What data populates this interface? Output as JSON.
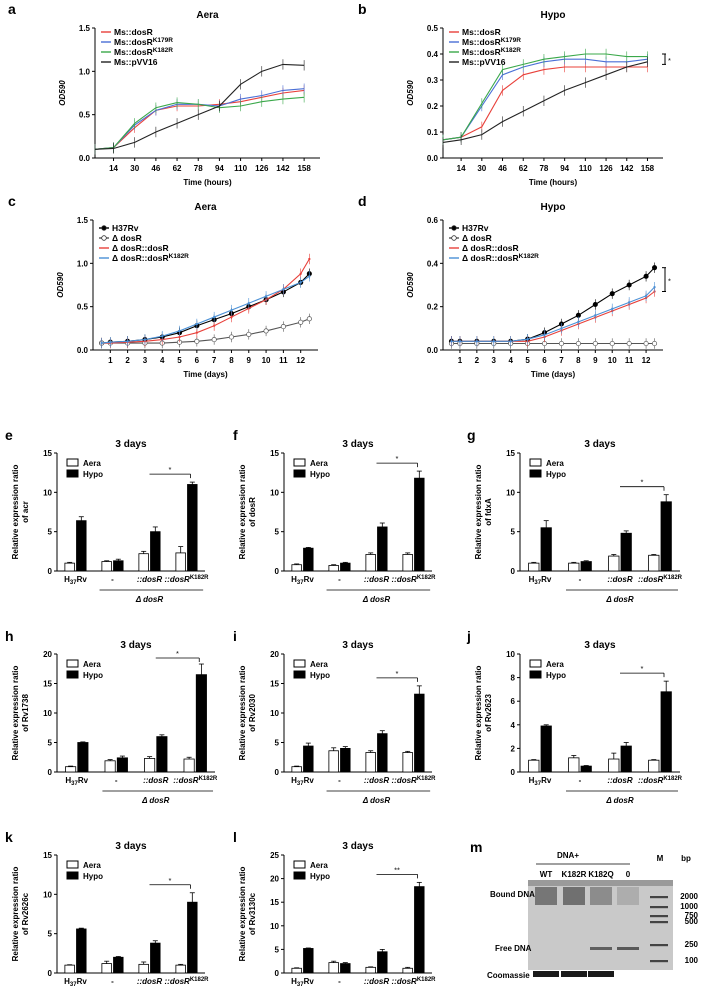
{
  "panels": {
    "a": {
      "letter": "a",
      "title": "Aera",
      "ylabel": "OD590",
      "xlabel": "Time (hours)",
      "yticks": [
        "0.0",
        "0.5",
        "1.0",
        "1.5"
      ],
      "xticks": [
        "14",
        "30",
        "46",
        "62",
        "78",
        "94",
        "110",
        "126",
        "142",
        "158"
      ],
      "legend": [
        {
          "text": "Ms::dosR",
          "color": "#e8403a"
        },
        {
          "text": "Ms::dosR K179R",
          "color": "#4a6fd6"
        },
        {
          "text": "Ms::dosR K182R",
          "color": "#3aa84a"
        },
        {
          "text": "Ms::pVV16",
          "color": "#222222"
        }
      ]
    },
    "b": {
      "letter": "b",
      "title": "Hypo",
      "ylabel": "OD590",
      "xlabel": "Time (hours)",
      "yticks": [
        "0.0",
        "0.1",
        "0.2",
        "0.3",
        "0.4",
        "0.5"
      ],
      "xticks": [
        "14",
        "30",
        "46",
        "62",
        "78",
        "94",
        "110",
        "126",
        "142",
        "158"
      ],
      "star": "*",
      "legend": [
        {
          "text": "Ms::dosR",
          "color": "#e8403a"
        },
        {
          "text": "Ms::dosR K179R",
          "color": "#4a6fd6"
        },
        {
          "text": "Ms::dosR K182R",
          "color": "#3aa84a"
        },
        {
          "text": "Ms::pVV16",
          "color": "#222222"
        }
      ]
    },
    "c": {
      "letter": "c",
      "title": "Aera",
      "ylabel": "OD590",
      "xlabel": "Time (days)",
      "yticks": [
        "0.0",
        "0.5",
        "1.0",
        "1.5"
      ],
      "xticks": [
        "1",
        "2",
        "3",
        "4",
        "5",
        "6",
        "7",
        "8",
        "9",
        "10",
        "11",
        "12"
      ],
      "legend": [
        {
          "text": "H37Rv",
          "color": "#000000"
        },
        {
          "text": "Δ dosR",
          "color": "#555555"
        },
        {
          "text": "Δ dosR::dosR",
          "color": "#e8403a"
        },
        {
          "text": "Δ dosR::dosR K182R",
          "color": "#4a90d6"
        }
      ]
    },
    "d": {
      "letter": "d",
      "title": "Hypo",
      "ylabel": "OD590",
      "xlabel": "Time (days)",
      "yticks": [
        "0.0",
        "0.2",
        "0.4",
        "0.6"
      ],
      "xticks": [
        "1",
        "2",
        "3",
        "4",
        "5",
        "6",
        "7",
        "8",
        "9",
        "10",
        "11",
        "12"
      ],
      "star": "*",
      "legend": [
        {
          "text": "H37Rv",
          "color": "#000000"
        },
        {
          "text": "Δ dosR",
          "color": "#555555"
        },
        {
          "text": "Δ dosR::dosR",
          "color": "#e8403a"
        },
        {
          "text": "Δ dosR::dosR K182R",
          "color": "#4a90d6"
        }
      ]
    }
  },
  "bars_common": {
    "subtitle": "3 days",
    "legend_aera": "Aera",
    "legend_hypo": "Hypo",
    "xcats": [
      "H37Rv",
      "-",
      "::dosR",
      "::dosR K182R"
    ],
    "group_label": "Δ dosR"
  },
  "chart_data": [
    {
      "type": "line",
      "panel": "a",
      "title": "Aera",
      "xlabel": "Time (hours)",
      "ylabel": "OD590",
      "xlim": [
        0,
        170
      ],
      "ylim": [
        0,
        1.5
      ],
      "series": [
        {
          "name": "Ms::dosR",
          "x": [
            0,
            14,
            30,
            46,
            62,
            78,
            94,
            110,
            126,
            142,
            158
          ],
          "values": [
            0.1,
            0.12,
            0.35,
            0.55,
            0.6,
            0.6,
            0.62,
            0.65,
            0.7,
            0.75,
            0.78
          ]
        },
        {
          "name": "Ms::dosR K179R",
          "x": [
            0,
            14,
            30,
            46,
            62,
            78,
            94,
            110,
            126,
            142,
            158
          ],
          "values": [
            0.1,
            0.12,
            0.38,
            0.55,
            0.62,
            0.62,
            0.6,
            0.68,
            0.72,
            0.78,
            0.8
          ]
        },
        {
          "name": "Ms::dosR K182R",
          "x": [
            0,
            14,
            30,
            46,
            62,
            78,
            94,
            110,
            126,
            142,
            158
          ],
          "values": [
            0.1,
            0.12,
            0.4,
            0.58,
            0.64,
            0.62,
            0.58,
            0.6,
            0.65,
            0.68,
            0.7
          ]
        },
        {
          "name": "Ms::pVV16",
          "x": [
            0,
            14,
            30,
            46,
            62,
            78,
            94,
            110,
            126,
            142,
            158
          ],
          "values": [
            0.1,
            0.11,
            0.18,
            0.3,
            0.4,
            0.5,
            0.6,
            0.85,
            1.0,
            1.08,
            1.07
          ]
        }
      ]
    },
    {
      "type": "line",
      "panel": "b",
      "title": "Hypo",
      "xlabel": "Time (hours)",
      "ylabel": "OD590",
      "xlim": [
        0,
        170
      ],
      "ylim": [
        0,
        0.5
      ],
      "series": [
        {
          "name": "Ms::dosR",
          "x": [
            0,
            14,
            30,
            46,
            62,
            78,
            94,
            110,
            126,
            142,
            158
          ],
          "values": [
            0.07,
            0.08,
            0.12,
            0.26,
            0.32,
            0.34,
            0.35,
            0.35,
            0.35,
            0.35,
            0.35
          ]
        },
        {
          "name": "Ms::dosR K179R",
          "x": [
            0,
            14,
            30,
            46,
            62,
            78,
            94,
            110,
            126,
            142,
            158
          ],
          "values": [
            0.07,
            0.08,
            0.2,
            0.32,
            0.35,
            0.37,
            0.38,
            0.38,
            0.37,
            0.37,
            0.38
          ]
        },
        {
          "name": "Ms::dosR K182R",
          "x": [
            0,
            14,
            30,
            46,
            62,
            78,
            94,
            110,
            126,
            142,
            158
          ],
          "values": [
            0.07,
            0.08,
            0.21,
            0.34,
            0.36,
            0.38,
            0.39,
            0.4,
            0.4,
            0.39,
            0.39
          ]
        },
        {
          "name": "Ms::pVV16",
          "x": [
            0,
            14,
            30,
            46,
            62,
            78,
            94,
            110,
            126,
            142,
            158
          ],
          "values": [
            0.06,
            0.07,
            0.09,
            0.14,
            0.18,
            0.22,
            0.26,
            0.29,
            0.32,
            0.35,
            0.37
          ]
        }
      ]
    },
    {
      "type": "line",
      "panel": "c",
      "title": "Aera",
      "xlabel": "Time (days)",
      "ylabel": "OD590",
      "xlim": [
        0,
        13
      ],
      "ylim": [
        0,
        1.5
      ],
      "series": [
        {
          "name": "H37Rv",
          "x": [
            0.5,
            1,
            2,
            3,
            4,
            5,
            6,
            7,
            8,
            9,
            10,
            11,
            12,
            12.5
          ],
          "values": [
            0.08,
            0.09,
            0.1,
            0.12,
            0.15,
            0.2,
            0.28,
            0.35,
            0.42,
            0.5,
            0.58,
            0.67,
            0.78,
            0.88
          ]
        },
        {
          "name": "Δ dosR",
          "x": [
            0.5,
            1,
            2,
            3,
            4,
            5,
            6,
            7,
            8,
            9,
            10,
            11,
            12,
            12.5
          ],
          "values": [
            0.08,
            0.08,
            0.08,
            0.08,
            0.08,
            0.09,
            0.1,
            0.12,
            0.15,
            0.18,
            0.22,
            0.27,
            0.32,
            0.36
          ]
        },
        {
          "name": "Δ dosR::dosR",
          "x": [
            0.5,
            1,
            2,
            3,
            4,
            5,
            6,
            7,
            8,
            9,
            10,
            11,
            12,
            12.5
          ],
          "values": [
            0.08,
            0.08,
            0.09,
            0.1,
            0.12,
            0.15,
            0.2,
            0.28,
            0.38,
            0.48,
            0.58,
            0.7,
            0.88,
            1.05
          ]
        },
        {
          "name": "Δ dosR::dosR K182R",
          "x": [
            0.5,
            1,
            2,
            3,
            4,
            5,
            6,
            7,
            8,
            9,
            10,
            11,
            12,
            12.5
          ],
          "values": [
            0.08,
            0.09,
            0.1,
            0.12,
            0.16,
            0.22,
            0.3,
            0.38,
            0.46,
            0.54,
            0.62,
            0.7,
            0.78,
            0.85
          ]
        }
      ]
    },
    {
      "type": "line",
      "panel": "d",
      "title": "Hypo",
      "xlabel": "Time (days)",
      "ylabel": "OD590",
      "xlim": [
        0,
        13
      ],
      "ylim": [
        0,
        0.6
      ],
      "series": [
        {
          "name": "H37Rv",
          "x": [
            0.5,
            1,
            2,
            3,
            4,
            5,
            6,
            7,
            8,
            9,
            10,
            11,
            12,
            12.5
          ],
          "values": [
            0.04,
            0.04,
            0.04,
            0.04,
            0.04,
            0.05,
            0.08,
            0.12,
            0.16,
            0.21,
            0.26,
            0.3,
            0.34,
            0.38
          ]
        },
        {
          "name": "Δ dosR",
          "x": [
            0.5,
            1,
            2,
            3,
            4,
            5,
            6,
            7,
            8,
            9,
            10,
            11,
            12,
            12.5
          ],
          "values": [
            0.03,
            0.03,
            0.03,
            0.03,
            0.03,
            0.03,
            0.03,
            0.03,
            0.03,
            0.03,
            0.03,
            0.03,
            0.03,
            0.03
          ]
        },
        {
          "name": "Δ dosR::dosR",
          "x": [
            0.5,
            1,
            2,
            3,
            4,
            5,
            6,
            7,
            8,
            9,
            10,
            11,
            12,
            12.5
          ],
          "values": [
            0.04,
            0.04,
            0.04,
            0.04,
            0.04,
            0.04,
            0.06,
            0.09,
            0.12,
            0.15,
            0.18,
            0.21,
            0.24,
            0.27
          ]
        },
        {
          "name": "Δ dosR::dosR K182R",
          "x": [
            0.5,
            1,
            2,
            3,
            4,
            5,
            6,
            7,
            8,
            9,
            10,
            11,
            12,
            12.5
          ],
          "values": [
            0.04,
            0.04,
            0.04,
            0.04,
            0.04,
            0.05,
            0.07,
            0.1,
            0.13,
            0.16,
            0.19,
            0.22,
            0.25,
            0.29
          ]
        }
      ]
    },
    {
      "type": "bar",
      "panel": "e",
      "ylabel": "Relative expression ratio of acr",
      "yticks": [
        "0",
        "5",
        "10",
        "15"
      ],
      "ymax": 15,
      "sig": "*",
      "sig_from": 2,
      "sig_to": 3,
      "series": [
        {
          "name": "Aera",
          "values": [
            1.0,
            1.2,
            2.2,
            2.3
          ],
          "err": [
            0.1,
            0.1,
            0.3,
            0.8
          ]
        },
        {
          "name": "Hypo",
          "values": [
            6.4,
            1.3,
            5.0,
            11.0
          ],
          "err": [
            0.5,
            0.2,
            0.6,
            0.3
          ]
        }
      ]
    },
    {
      "type": "bar",
      "panel": "f",
      "ylabel": "Relative expression ratio of dosR",
      "yticks": [
        "0",
        "5",
        "10",
        "15"
      ],
      "ymax": 15,
      "sig": "*",
      "sig_from": 2,
      "sig_to": 3,
      "series": [
        {
          "name": "Aera",
          "values": [
            0.8,
            0.7,
            2.1,
            2.1
          ],
          "err": [
            0.1,
            0.1,
            0.2,
            0.2
          ]
        },
        {
          "name": "Hypo",
          "values": [
            2.9,
            1.0,
            5.6,
            11.8
          ],
          "err": [
            0.1,
            0.1,
            0.5,
            0.9
          ]
        }
      ]
    },
    {
      "type": "bar",
      "panel": "g",
      "ylabel": "Relative expression ratio of fdxA",
      "yticks": [
        "0",
        "5",
        "10",
        "15"
      ],
      "ymax": 15,
      "sig": "*",
      "sig_from": 2,
      "sig_to": 3,
      "series": [
        {
          "name": "Aera",
          "values": [
            1.0,
            1.0,
            1.9,
            2.0
          ],
          "err": [
            0.1,
            0.1,
            0.2,
            0.1
          ]
        },
        {
          "name": "Hypo",
          "values": [
            5.5,
            1.2,
            4.8,
            8.8
          ],
          "err": [
            0.9,
            0.1,
            0.3,
            0.9
          ]
        }
      ]
    },
    {
      "type": "bar",
      "panel": "h",
      "ylabel": "Relative expression ratio of Rv1738",
      "yticks": [
        "0",
        "5",
        "10",
        "15",
        "20"
      ],
      "ymax": 20,
      "sig": "*",
      "sig_from": 2,
      "sig_to": 3,
      "series": [
        {
          "name": "Aera",
          "values": [
            0.9,
            1.9,
            2.3,
            2.2
          ],
          "err": [
            0.1,
            0.2,
            0.3,
            0.3
          ]
        },
        {
          "name": "Hypo",
          "values": [
            5.0,
            2.4,
            6.0,
            16.5
          ],
          "err": [
            0.1,
            0.3,
            0.3,
            1.8
          ]
        }
      ]
    },
    {
      "type": "bar",
      "panel": "i",
      "ylabel": "Relative expression ratio of Rv2030",
      "yticks": [
        "0",
        "5",
        "10",
        "15",
        "20"
      ],
      "ymax": 20,
      "sig": "*",
      "sig_from": 2,
      "sig_to": 3,
      "series": [
        {
          "name": "Aera",
          "values": [
            0.9,
            3.6,
            3.3,
            3.3
          ],
          "err": [
            0.1,
            0.5,
            0.3,
            0.2
          ]
        },
        {
          "name": "Hypo",
          "values": [
            4.4,
            4.0,
            6.5,
            13.2
          ],
          "err": [
            0.5,
            0.3,
            0.5,
            1.4
          ]
        }
      ]
    },
    {
      "type": "bar",
      "panel": "j",
      "ylabel": "Relative expression ratio of Rv2623",
      "yticks": [
        "0",
        "2",
        "4",
        "6",
        "8",
        "10"
      ],
      "ymax": 10,
      "sig": "*",
      "sig_from": 2,
      "sig_to": 3,
      "series": [
        {
          "name": "Aera",
          "values": [
            1.0,
            1.2,
            1.1,
            1.0
          ],
          "err": [
            0.05,
            0.2,
            0.5,
            0.05
          ]
        },
        {
          "name": "Hypo",
          "values": [
            3.9,
            0.5,
            2.2,
            6.8
          ],
          "err": [
            0.1,
            0.05,
            0.3,
            0.9
          ]
        }
      ]
    },
    {
      "type": "bar",
      "panel": "k",
      "ylabel": "Relative expression ratio of Rv2626c",
      "yticks": [
        "0",
        "5",
        "10",
        "15"
      ],
      "ymax": 15,
      "sig": "*",
      "sig_from": 2,
      "sig_to": 3,
      "series": [
        {
          "name": "Aera",
          "values": [
            1.0,
            1.2,
            1.1,
            1.0
          ],
          "err": [
            0.05,
            0.3,
            0.3,
            0.1
          ]
        },
        {
          "name": "Hypo",
          "values": [
            5.6,
            2.0,
            3.8,
            9.0
          ],
          "err": [
            0.1,
            0.1,
            0.3,
            1.2
          ]
        }
      ]
    },
    {
      "type": "bar",
      "panel": "l",
      "ylabel": "Relative expression ratio of Rv3130c",
      "yticks": [
        "0",
        "5",
        "10",
        "15",
        "20",
        "25"
      ],
      "ymax": 25,
      "sig": "**",
      "sig_from": 2,
      "sig_to": 3,
      "series": [
        {
          "name": "Aera",
          "values": [
            1.0,
            2.2,
            1.2,
            1.0
          ],
          "err": [
            0.1,
            0.3,
            0.1,
            0.2
          ]
        },
        {
          "name": "Hypo",
          "values": [
            5.2,
            2.0,
            4.5,
            18.3
          ],
          "err": [
            0.1,
            0.2,
            0.5,
            0.9
          ]
        }
      ]
    }
  ],
  "gel": {
    "letter": "m",
    "header": "DNA+",
    "lanes": [
      "WT",
      "K182R",
      "K182Q",
      "0"
    ],
    "marker": "M",
    "bp_label": "bp",
    "bound": "Bound  DNA",
    "free": "Free DNA",
    "coomassie": "Coomassie",
    "ladder": [
      "2000",
      "1000",
      "750",
      "500",
      "250",
      "100"
    ]
  }
}
